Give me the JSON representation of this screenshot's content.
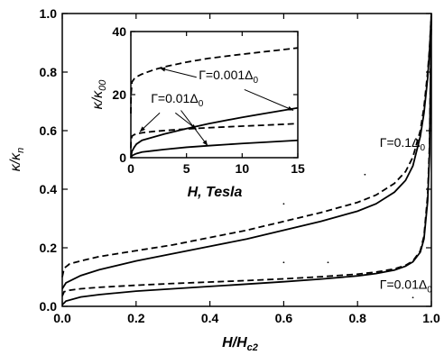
{
  "chart_data": [
    {
      "type": "line",
      "id": "main",
      "xlabel": "H/H",
      "xlabel_sub": "c2",
      "ylabel": "κ/κ",
      "ylabel_sub": "n",
      "xlim": [
        0.0,
        1.0
      ],
      "ylim": [
        0.0,
        1.0
      ],
      "xticks": [
        0.0,
        0.2,
        0.4,
        0.6,
        0.8,
        1.0
      ],
      "xtick_labels": [
        "0.0",
        "0.2",
        "0.4",
        "0.6",
        "0.8",
        "1.0"
      ],
      "yticks": [
        0.0,
        0.2,
        0.4,
        0.6,
        0.8,
        1.0
      ],
      "ytick_labels": [
        "0.0",
        "0.2",
        "0.4",
        "0.6",
        "0.8",
        "1.0"
      ],
      "grid": false,
      "series": [
        {
          "style": "dashed",
          "x": [
            0,
            0.005,
            0.02,
            0.05,
            0.1,
            0.2,
            0.3,
            0.4,
            0.5,
            0.6,
            0.7,
            0.8,
            0.85,
            0.9,
            0.93,
            0.95,
            0.97,
            0.98,
            0.99,
            0.995,
            1.0
          ],
          "y": [
            0.1,
            0.13,
            0.145,
            0.155,
            0.17,
            0.19,
            0.21,
            0.235,
            0.26,
            0.29,
            0.32,
            0.355,
            0.38,
            0.42,
            0.46,
            0.51,
            0.6,
            0.68,
            0.8,
            0.88,
            1.0
          ]
        },
        {
          "style": "solid",
          "x": [
            0,
            0.01,
            0.05,
            0.1,
            0.2,
            0.3,
            0.4,
            0.5,
            0.6,
            0.7,
            0.8,
            0.85,
            0.9,
            0.93,
            0.95,
            0.97,
            0.98,
            0.99,
            0.995,
            1.0
          ],
          "y": [
            0.06,
            0.08,
            0.105,
            0.125,
            0.155,
            0.18,
            0.205,
            0.23,
            0.26,
            0.29,
            0.325,
            0.35,
            0.39,
            0.43,
            0.48,
            0.58,
            0.66,
            0.78,
            0.87,
            1.0
          ]
        },
        {
          "style": "dashed",
          "x": [
            0,
            0.005,
            0.02,
            0.05,
            0.1,
            0.2,
            0.3,
            0.4,
            0.5,
            0.6,
            0.7,
            0.8,
            0.85,
            0.9,
            0.93,
            0.95,
            0.97,
            0.98,
            0.99,
            0.995,
            1.0
          ],
          "y": [
            0.035,
            0.05,
            0.055,
            0.06,
            0.065,
            0.072,
            0.078,
            0.083,
            0.088,
            0.094,
            0.101,
            0.11,
            0.117,
            0.128,
            0.14,
            0.155,
            0.19,
            0.24,
            0.38,
            0.55,
            1.0
          ]
        },
        {
          "style": "solid",
          "x": [
            0,
            0.01,
            0.05,
            0.1,
            0.2,
            0.3,
            0.4,
            0.5,
            0.6,
            0.7,
            0.8,
            0.85,
            0.9,
            0.93,
            0.95,
            0.97,
            0.98,
            0.99,
            0.995,
            1.0
          ],
          "y": [
            0.005,
            0.018,
            0.032,
            0.04,
            0.052,
            0.06,
            0.068,
            0.076,
            0.084,
            0.093,
            0.104,
            0.112,
            0.124,
            0.137,
            0.152,
            0.185,
            0.23,
            0.36,
            0.52,
            1.0
          ]
        }
      ],
      "scatter_points": [
        [
          0.82,
          0.45
        ],
        [
          0.6,
          0.35
        ],
        [
          0.6,
          0.15
        ],
        [
          0.72,
          0.15
        ],
        [
          0.95,
          0.03
        ]
      ],
      "annotations": [
        {
          "text": "Γ=0.1Δ",
          "sub": "0",
          "x": 0.86,
          "y": 0.545
        },
        {
          "text": "Γ=0.01Δ",
          "sub": "0",
          "x": 0.86,
          "y": 0.06
        }
      ]
    },
    {
      "type": "line",
      "id": "inset",
      "xlabel": "H, Tesla",
      "ylabel": "κ/κ",
      "ylabel_sub": "00",
      "xlim": [
        0,
        15
      ],
      "ylim": [
        0,
        40
      ],
      "xticks": [
        0,
        5,
        10,
        15
      ],
      "xtick_labels": [
        "0",
        "5",
        "10",
        "15"
      ],
      "yticks": [
        0,
        20,
        40
      ],
      "ytick_labels": [
        "0",
        "20",
        "40"
      ],
      "grid": false,
      "series": [
        {
          "style": "dashed",
          "x": [
            0,
            0.02,
            0.1,
            0.3,
            0.6,
            1,
            2,
            3,
            5,
            7,
            10,
            12,
            15
          ],
          "y": [
            14,
            20,
            24,
            25,
            25.8,
            26.5,
            27.8,
            28.8,
            30.3,
            31.5,
            32.8,
            33.6,
            34.8
          ]
        },
        {
          "style": "solid",
          "x": [
            0,
            0.1,
            0.3,
            0.5,
            1,
            2,
            3,
            5,
            7,
            10,
            12,
            15
          ],
          "y": [
            0,
            2,
            3.3,
            4.3,
            5.5,
            6.5,
            7.5,
            9.2,
            10.8,
            12.8,
            14,
            15.8
          ]
        },
        {
          "style": "dashed",
          "x": [
            0,
            0.02,
            0.1,
            0.3,
            0.6,
            1,
            2,
            3,
            5,
            7,
            10,
            12,
            15
          ],
          "y": [
            3,
            5.5,
            6.8,
            7.3,
            7.6,
            7.9,
            8.3,
            8.6,
            9.1,
            9.5,
            10,
            10.3,
            10.8
          ]
        },
        {
          "style": "solid",
          "x": [
            0,
            0.1,
            0.3,
            0.5,
            1,
            2,
            3,
            5,
            7,
            10,
            12,
            15
          ],
          "y": [
            0,
            0.6,
            1,
            1.3,
            1.8,
            2.2,
            2.6,
            3.3,
            3.8,
            4.5,
            4.9,
            5.5
          ]
        }
      ],
      "annotations": [
        {
          "text": "Γ=0.001Δ",
          "sub": "0",
          "x": 6.1,
          "y": 24.8
        },
        {
          "text": "Γ=0.01Δ",
          "sub": "0",
          "x": 1.8,
          "y": 17.5
        }
      ],
      "arrows": [
        {
          "from": [
            5.9,
            25.5
          ],
          "to": [
            2.6,
            28.4
          ]
        },
        {
          "from": [
            10.2,
            21.6
          ],
          "to": [
            14.6,
            15.0
          ]
        },
        {
          "from": [
            2.6,
            14.2
          ],
          "to": [
            0.8,
            8.2
          ]
        },
        {
          "from": [
            4.0,
            14.2
          ],
          "to": [
            5.9,
            9.0
          ]
        },
        {
          "from": [
            4.5,
            15.0
          ],
          "to": [
            6.9,
            3.8
          ]
        }
      ]
    }
  ]
}
